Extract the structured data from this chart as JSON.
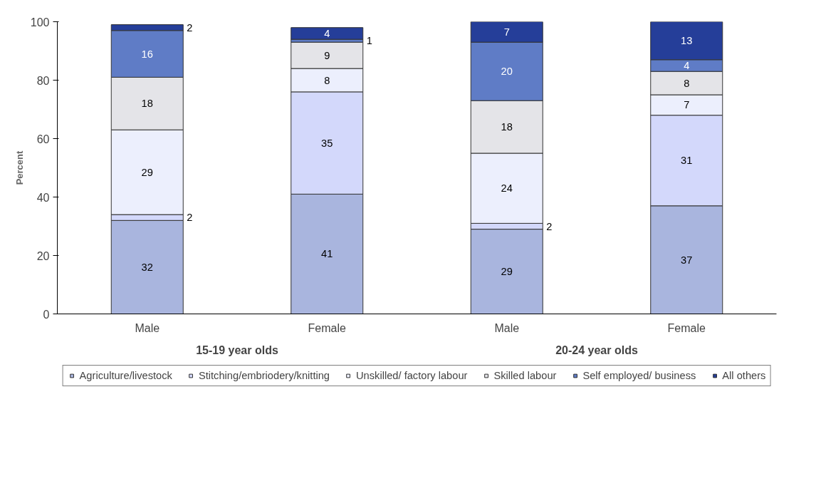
{
  "chart_data": {
    "type": "bar",
    "stacked": true,
    "ylabel": "Percent",
    "categories": [
      "Male",
      "Female",
      "Male",
      "Female"
    ],
    "annotations": [
      "15-19 year olds",
      "20-24 year olds"
    ],
    "series": [
      {
        "name": "Agriculture/livestock",
        "color": "#a9b5de",
        "values": [
          32,
          41,
          29,
          37
        ]
      },
      {
        "name": "Stitching/embriodery/knitting",
        "color": "#d3d8fb",
        "values": [
          2,
          35,
          2,
          31
        ]
      },
      {
        "name": "Unskilled/ factory labour",
        "color": "#eceffd",
        "values": [
          29,
          8,
          24,
          7
        ]
      },
      {
        "name": "Skilled labour",
        "color": "#e4e4e8",
        "values": [
          18,
          9,
          18,
          8
        ]
      },
      {
        "name": "Self employed/ business",
        "color": "#5f7cc6",
        "values": [
          16,
          1,
          20,
          4
        ]
      },
      {
        "name": "All others",
        "color": "#253e99",
        "values": [
          2,
          4,
          7,
          13
        ]
      }
    ],
    "ylim": [
      0,
      100
    ],
    "yticks": [
      0,
      20,
      40,
      60,
      80,
      100
    ],
    "data_labels": true,
    "grid": false,
    "legend": "bottom"
  }
}
